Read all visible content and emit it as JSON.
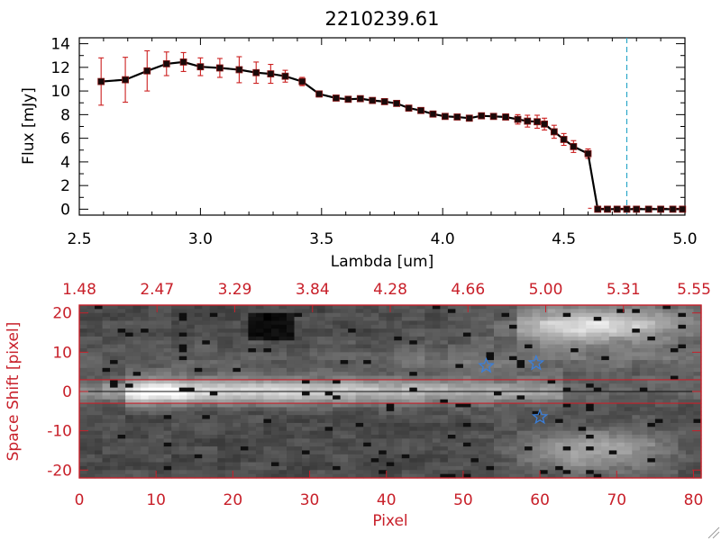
{
  "title": "2210239.61",
  "colors": {
    "axis": "#000000",
    "error_bar": "#cc1f1f",
    "marker": "#8b1a1a",
    "cutoff_line": "#2aa6c8",
    "red_axis": "#c8202a",
    "star": "#3b7fd9"
  },
  "chart_data": [
    {
      "type": "line",
      "name": "spectrum",
      "title": "2210239.61",
      "xlabel": "Lambda [um]",
      "ylabel": "Flux [mJy]",
      "xlim": [
        2.5,
        5.0
      ],
      "ylim": [
        -0.5,
        14.5
      ],
      "xticks": [
        "2.5",
        "3.0",
        "3.5",
        "4.0",
        "4.5",
        "5.0"
      ],
      "xtick_values": [
        2.5,
        3.0,
        3.5,
        4.0,
        4.5,
        5.0
      ],
      "yticks": [
        "0",
        "2",
        "4",
        "6",
        "8",
        "10",
        "12",
        "14"
      ],
      "ytick_values": [
        0,
        2,
        4,
        6,
        8,
        10,
        12,
        14
      ],
      "cutoff_wavelength": 4.76,
      "x": [
        2.59,
        2.69,
        2.78,
        2.86,
        2.93,
        3.0,
        3.08,
        3.16,
        3.23,
        3.29,
        3.35,
        3.42,
        3.49,
        3.56,
        3.61,
        3.66,
        3.71,
        3.76,
        3.81,
        3.86,
        3.91,
        3.96,
        4.01,
        4.06,
        4.11,
        4.16,
        4.21,
        4.26,
        4.31,
        4.35,
        4.39,
        4.42,
        4.46,
        4.5,
        4.54,
        4.6,
        4.64,
        4.68,
        4.72,
        4.76,
        4.8,
        4.85,
        4.9,
        4.95,
        4.99
      ],
      "y": [
        10.8,
        10.95,
        11.7,
        12.3,
        12.45,
        12.05,
        11.95,
        11.8,
        11.55,
        11.45,
        11.25,
        10.8,
        9.75,
        9.4,
        9.3,
        9.35,
        9.2,
        9.1,
        8.95,
        8.55,
        8.35,
        8.05,
        7.85,
        7.8,
        7.7,
        7.9,
        7.85,
        7.8,
        7.6,
        7.45,
        7.4,
        7.2,
        6.55,
        5.9,
        5.3,
        4.7,
        0.0,
        0.0,
        0.0,
        0.0,
        0.0,
        0.0,
        0.0,
        0.0,
        0.0
      ],
      "yerr": [
        2.0,
        1.9,
        1.7,
        1.0,
        0.8,
        0.75,
        0.8,
        1.1,
        0.9,
        0.8,
        0.5,
        0.35,
        0.25,
        0.2,
        0.2,
        0.2,
        0.2,
        0.2,
        0.2,
        0.2,
        0.2,
        0.2,
        0.2,
        0.15,
        0.2,
        0.2,
        0.2,
        0.25,
        0.4,
        0.5,
        0.55,
        0.5,
        0.55,
        0.5,
        0.5,
        0.4,
        0.15,
        0.15,
        0.15,
        0.15,
        0.15,
        0.15,
        0.15,
        0.15,
        0.15
      ]
    },
    {
      "type": "heatmap",
      "name": "spectral-image",
      "xlabel": "Pixel",
      "ylabel": "Space Shift [pixel]",
      "xlim": [
        0,
        81
      ],
      "ylim": [
        -22,
        22
      ],
      "xticks": [
        "0",
        "10",
        "20",
        "30",
        "40",
        "50",
        "60",
        "70",
        "80"
      ],
      "xtick_values": [
        0,
        10,
        20,
        30,
        40,
        50,
        60,
        70,
        80
      ],
      "yticks": [
        "-20",
        "-10",
        "0",
        "10",
        "20"
      ],
      "ytick_values": [
        -20,
        -10,
        0,
        10,
        20
      ],
      "top_axis_labels": [
        "1.48",
        "2.47",
        "3.29",
        "3.84",
        "4.28",
        "4.66",
        "5.00",
        "5.31",
        "5.55"
      ],
      "aperture_bounds": [
        -3,
        3
      ],
      "stars": [
        {
          "pixel": 53,
          "shift": 6.5
        },
        {
          "pixel": 59.5,
          "shift": 7.2
        },
        {
          "pixel": 60,
          "shift": -6.5
        }
      ]
    }
  ]
}
